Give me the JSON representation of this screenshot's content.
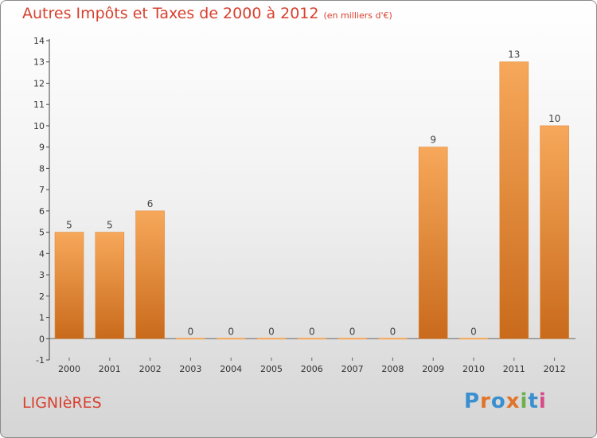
{
  "title": "Autres Impôts et Taxes de 2000 à 2012",
  "unit_note": "(en milliers d'€)",
  "town": "LIGNIèRES",
  "logo": {
    "text": "Proxiti",
    "colors": [
      "#3a8fd0",
      "#e0742a",
      "#3a8fd0",
      "#e0742a",
      "#6ab04c",
      "#3a8fd0",
      "#d84a8a"
    ]
  },
  "colors": {
    "bar_top": "#f7a85a",
    "bar_bottom": "#c96a1c",
    "title": "#d8402f"
  },
  "chart_data": {
    "type": "bar",
    "title": "Autres Impôts et Taxes de 2000 à 2012",
    "categories": [
      "2000",
      "2001",
      "2002",
      "2003",
      "2004",
      "2005",
      "2006",
      "2007",
      "2008",
      "2009",
      "2010",
      "2011",
      "2012"
    ],
    "values": [
      5,
      5,
      6,
      0,
      0,
      0,
      0,
      0,
      0,
      9,
      0,
      13,
      10
    ],
    "ylim": [
      -1,
      14
    ],
    "y_ticks": [
      "-1",
      "0",
      "1",
      "2",
      "3",
      "4",
      "5",
      "6",
      "7",
      "8",
      "9",
      "10",
      "11",
      "12",
      "13",
      "14"
    ],
    "grid": false,
    "legend": "none"
  }
}
